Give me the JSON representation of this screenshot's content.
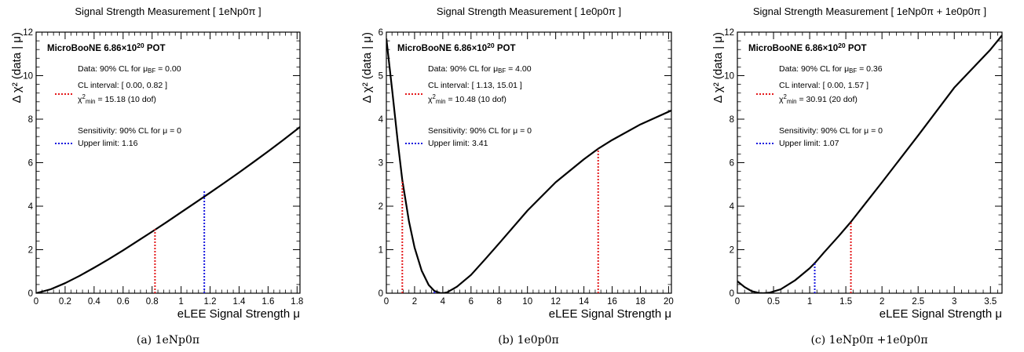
{
  "chart_data": [
    {
      "type": "line",
      "title": "Signal Strength Measurement [ 1eNp0π ]",
      "xlabel": "eLEE Signal Strength μ",
      "ylabel": "Δ χ² (data | μ)",
      "xlim": [
        0,
        1.82
      ],
      "ylim": [
        0,
        12
      ],
      "xticks": [
        0,
        0.2,
        0.4,
        0.6,
        0.8,
        1,
        1.2,
        1.4,
        1.6,
        1.8
      ],
      "xtick_labels": [
        "0",
        "0.2",
        "0.4",
        "0.6",
        "0.8",
        "1",
        "1.2",
        "1.4",
        "1.6",
        "1.8"
      ],
      "yticks": [
        0,
        2,
        4,
        6,
        8,
        10,
        12
      ],
      "ytick_labels": [
        "0",
        "2",
        "4",
        "6",
        "8",
        "10",
        "12"
      ],
      "series": [
        {
          "x": [
            0,
            0.1,
            0.2,
            0.3,
            0.4,
            0.5,
            0.6,
            0.7,
            0.8,
            0.9,
            1.0,
            1.1,
            1.2,
            1.3,
            1.4,
            1.5,
            1.6,
            1.7,
            1.82
          ],
          "y": [
            0.0,
            0.18,
            0.46,
            0.8,
            1.17,
            1.56,
            1.97,
            2.4,
            2.83,
            3.27,
            3.72,
            4.17,
            4.62,
            5.08,
            5.55,
            6.03,
            6.52,
            7.02,
            7.64
          ]
        }
      ],
      "vlines": [
        {
          "x": 0.82,
          "y": 2.94,
          "color": "#e41a1c"
        },
        {
          "x": 1.16,
          "y": 4.72,
          "color": "#1a1adf"
        }
      ],
      "legend": {
        "header": "MicroBooNE 6.86×10²⁰ POT",
        "data_line": "Data: 90% CL for μ_BF = 0.00",
        "cl_interval": "CL interval: [ 0.00, 0.82 ]",
        "chi2": "χ²_min = 15.18 (10 dof)",
        "sensitivity": "Sensitivity: 90% CL for μ = 0",
        "upper_limit": "Upper limit: 1.16"
      },
      "caption": "(a) 1eNp0π"
    },
    {
      "type": "line",
      "title": "Signal Strength Measurement [ 1e0p0π ]",
      "xlabel": "eLEE Signal Strength μ",
      "ylabel": "Δ χ² (data | μ)",
      "xlim": [
        0,
        20.2
      ],
      "ylim": [
        0,
        6
      ],
      "xticks": [
        0,
        2,
        4,
        6,
        8,
        10,
        12,
        14,
        16,
        18,
        20
      ],
      "xtick_labels": [
        "0",
        "2",
        "4",
        "6",
        "8",
        "10",
        "12",
        "14",
        "16",
        "18",
        "20"
      ],
      "yticks": [
        0,
        1,
        2,
        3,
        4,
        5,
        6
      ],
      "ytick_labels": [
        "0",
        "1",
        "2",
        "3",
        "4",
        "5",
        "6"
      ],
      "series": [
        {
          "x": [
            0,
            0.4,
            0.8,
            1.13,
            1.6,
            2.0,
            2.5,
            3.0,
            3.41,
            3.8,
            4.0,
            4.3,
            5.0,
            6.0,
            7.0,
            8.0,
            10.0,
            12.0,
            14.0,
            15.01,
            16.0,
            18.0,
            20.2
          ],
          "y": [
            5.85,
            4.7,
            3.5,
            2.6,
            1.65,
            1.05,
            0.52,
            0.19,
            0.05,
            0.005,
            0.0,
            0.02,
            0.15,
            0.42,
            0.78,
            1.15,
            1.9,
            2.55,
            3.08,
            3.32,
            3.52,
            3.88,
            4.2
          ]
        }
      ],
      "vlines": [
        {
          "x": 1.13,
          "y": 2.6,
          "color": "#e41a1c"
        },
        {
          "x": 15.01,
          "y": 3.32,
          "color": "#e41a1c"
        },
        {
          "x": 3.41,
          "y": 0.05,
          "color": "#1a1adf"
        }
      ],
      "legend": {
        "header": "MicroBooNE 6.86×10²⁰ POT",
        "data_line": "Data: 90% CL for μ_BF = 4.00",
        "cl_interval": "CL interval: [ 1.13, 15.01 ]",
        "chi2": "χ²_min = 10.48 (10 dof)",
        "sensitivity": "Sensitivity: 90% CL for μ = 0",
        "upper_limit": "Upper limit: 3.41"
      },
      "caption": "(b) 1e0p0π"
    },
    {
      "type": "line",
      "title": "Signal Strength Measurement [ 1eNp0π + 1e0p0π ]",
      "xlabel": "eLEE Signal Strength μ",
      "ylabel": "Δ χ² (data | μ)",
      "xlim": [
        0,
        3.66
      ],
      "ylim": [
        0,
        12
      ],
      "xticks": [
        0,
        0.5,
        1,
        1.5,
        2,
        2.5,
        3,
        3.5
      ],
      "xtick_labels": [
        "0",
        "0.5",
        "1",
        "1.5",
        "2",
        "2.5",
        "3",
        "3.5"
      ],
      "yticks": [
        0,
        2,
        4,
        6,
        8,
        10,
        12
      ],
      "ytick_labels": [
        "0",
        "2",
        "4",
        "6",
        "8",
        "10",
        "12"
      ],
      "series": [
        {
          "x": [
            0,
            0.1,
            0.2,
            0.3,
            0.36,
            0.45,
            0.6,
            0.8,
            1.0,
            1.07,
            1.2,
            1.4,
            1.57,
            1.8,
            2.0,
            2.5,
            3.0,
            3.5,
            3.66
          ],
          "y": [
            0.55,
            0.28,
            0.09,
            0.01,
            0.0,
            0.03,
            0.18,
            0.6,
            1.15,
            1.38,
            1.88,
            2.62,
            3.28,
            4.25,
            5.1,
            7.25,
            9.45,
            11.2,
            11.85
          ]
        }
      ],
      "vlines": [
        {
          "x": 1.57,
          "y": 3.28,
          "color": "#e41a1c"
        },
        {
          "x": 1.07,
          "y": 1.38,
          "color": "#1a1adf"
        }
      ],
      "legend": {
        "header": "MicroBooNE 6.86×10²⁰ POT",
        "data_line": "Data: 90% CL for μ_BF = 0.36",
        "cl_interval": "CL interval: [ 0.00, 1.57 ]",
        "chi2": "χ²_min = 30.91 (20 dof)",
        "sensitivity": "Sensitivity: 90% CL for μ = 0",
        "upper_limit": "Upper limit: 1.07"
      },
      "caption": "(c) 1eNp0π +1e0p0π"
    }
  ]
}
